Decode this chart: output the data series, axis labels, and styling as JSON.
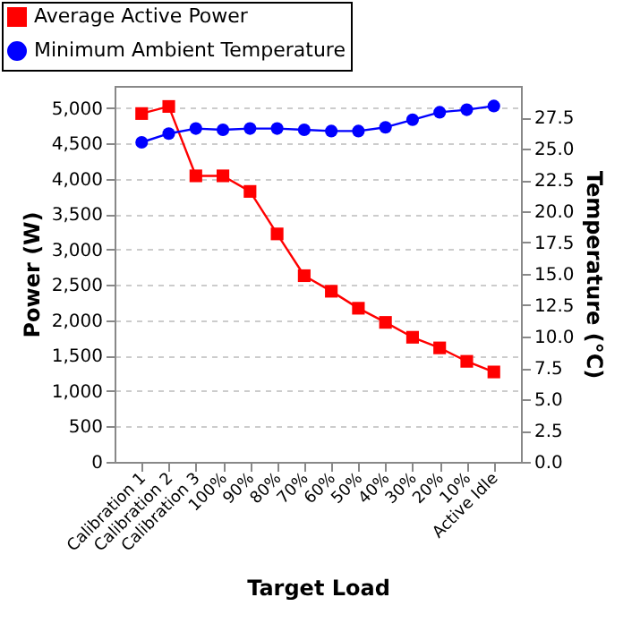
{
  "chart_data": {
    "type": "line",
    "xlabel": "Target Load",
    "ylabel": "Power (W)",
    "y2label": "Temperature  (°C)",
    "categories": [
      "Calibration 1",
      "Calibration 2",
      "Calibration 3",
      "100%",
      "90%",
      "80%",
      "70%",
      "60%",
      "50%",
      "40%",
      "30%",
      "20%",
      "10%",
      "Active Idle"
    ],
    "series": [
      {
        "name": "Average Active Power",
        "color": "#ff0000",
        "marker": "square",
        "values": [
          4920,
          5020,
          4040,
          4040,
          3820,
          3220,
          2630,
          2410,
          2170,
          1970,
          1760,
          1610,
          1420,
          1270
        ]
      },
      {
        "name": "Minimum Ambient Temperature",
        "color": "#0000ff",
        "marker": "circle",
        "axis": "y2",
        "values": [
          25.5,
          26.2,
          26.6,
          26.5,
          26.6,
          26.6,
          26.5,
          26.4,
          26.4,
          26.7,
          27.3,
          27.9,
          28.1,
          28.4
        ]
      }
    ],
    "ylim": [
      0,
      5310
    ],
    "yticks": [
      {
        "value": 0,
        "label": "0"
      },
      {
        "value": 500,
        "label": "500"
      },
      {
        "value": 1000,
        "label": "1,000"
      },
      {
        "value": 1500,
        "label": "1,500"
      },
      {
        "value": 2000,
        "label": "2,000"
      },
      {
        "value": 2500,
        "label": "2,500"
      },
      {
        "value": 3000,
        "label": "3,000"
      },
      {
        "value": 3500,
        "label": "3,500"
      },
      {
        "value": 4000,
        "label": "4,000"
      },
      {
        "value": 4500,
        "label": "4,500"
      },
      {
        "value": 5000,
        "label": "5,000"
      }
    ],
    "y2lim": [
      0,
      30
    ],
    "y2ticks": [
      {
        "value": 0,
        "label": "0.0"
      },
      {
        "value": 2.5,
        "label": "2.5"
      },
      {
        "value": 5,
        "label": "5.0"
      },
      {
        "value": 7.5,
        "label": "7.5"
      },
      {
        "value": 10,
        "label": "10.0"
      },
      {
        "value": 12.5,
        "label": "12.5"
      },
      {
        "value": 15,
        "label": "15.0"
      },
      {
        "value": 17.5,
        "label": "17.5"
      },
      {
        "value": 20,
        "label": "20.0"
      },
      {
        "value": 22.5,
        "label": "22.5"
      },
      {
        "value": 25,
        "label": "25.0"
      },
      {
        "value": 27.5,
        "label": "27.5"
      }
    ],
    "grid": "y",
    "legend": "top"
  }
}
